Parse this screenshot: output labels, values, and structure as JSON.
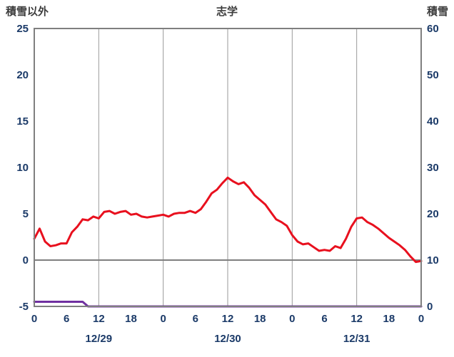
{
  "header": {
    "left_axis_label": "積雪以外",
    "title": "志学",
    "right_axis_label": "積雪"
  },
  "colors": {
    "tick_text": "#1b3a68",
    "header_text": "#3c3c3c",
    "border": "#7f7f7f",
    "grid": "#9a9a9a",
    "zero_line": "#7f7f7f",
    "background": "#ffffff",
    "temp_line": "#e8101e",
    "snow_line": "#7030a0"
  },
  "chart_data": {
    "type": "line",
    "title": "志学",
    "x_axis": {
      "unit": "hour",
      "range": [
        0,
        72
      ],
      "tick_hours": [
        0,
        6,
        12,
        18,
        24,
        30,
        36,
        42,
        48,
        54,
        60,
        66,
        72
      ],
      "tick_labels": [
        "0",
        "6",
        "12",
        "18",
        "0",
        "6",
        "12",
        "18",
        "0",
        "6",
        "12",
        "18",
        "0"
      ],
      "grid_hours": [
        12,
        24,
        36,
        48,
        60
      ],
      "date_labels": [
        {
          "label": "12/29",
          "hour": 12
        },
        {
          "label": "12/30",
          "hour": 36
        },
        {
          "label": "12/31",
          "hour": 60
        }
      ]
    },
    "left_axis": {
      "label": "積雪以外",
      "range": [
        -5,
        25
      ],
      "ticks": [
        -5,
        0,
        5,
        10,
        15,
        20,
        25
      ]
    },
    "right_axis": {
      "label": "積雪",
      "range": [
        0,
        60
      ],
      "ticks": [
        0,
        10,
        20,
        30,
        40,
        50,
        60
      ]
    },
    "zero_line_left_value": 0,
    "series": [
      {
        "name": "積雪以外",
        "axis": "left",
        "color": "#e8101e",
        "width": 3,
        "values": [
          2.3,
          3.4,
          2.0,
          1.5,
          1.6,
          1.8,
          1.8,
          3.0,
          3.6,
          4.4,
          4.3,
          4.7,
          4.5,
          5.2,
          5.3,
          5.0,
          5.2,
          5.3,
          4.9,
          5.0,
          4.7,
          4.6,
          4.7,
          4.8,
          4.9,
          4.7,
          5.0,
          5.1,
          5.1,
          5.3,
          5.1,
          5.5,
          6.3,
          7.2,
          7.6,
          8.3,
          8.9,
          8.5,
          8.2,
          8.4,
          7.8,
          7.0,
          6.5,
          6.0,
          5.2,
          4.4,
          4.1,
          3.7,
          2.7,
          2.0,
          1.7,
          1.8,
          1.4,
          1.0,
          1.1,
          1.0,
          1.5,
          1.3,
          2.3,
          3.6,
          4.5,
          4.6,
          4.1,
          3.8,
          3.4,
          2.9,
          2.4,
          2.0,
          1.6,
          1.1,
          0.4,
          -0.2,
          -0.1
        ]
      },
      {
        "name": "積雪",
        "axis": "right",
        "color": "#7030a0",
        "width": 3,
        "values": [
          1,
          1,
          1,
          1,
          1,
          1,
          1,
          1,
          1,
          1,
          0,
          0,
          0,
          0,
          0,
          0,
          0,
          0,
          0,
          0,
          0,
          0,
          0,
          0,
          0,
          0,
          0,
          0,
          0,
          0,
          0,
          0,
          0,
          0,
          0,
          0,
          0,
          0,
          0,
          0,
          0,
          0,
          0,
          0,
          0,
          0,
          0,
          0,
          0,
          0,
          0,
          0,
          0,
          0,
          0,
          0,
          0,
          0,
          0,
          0,
          0,
          0,
          0,
          0,
          0,
          0,
          0,
          0,
          0,
          0,
          0,
          0,
          0
        ]
      }
    ]
  }
}
